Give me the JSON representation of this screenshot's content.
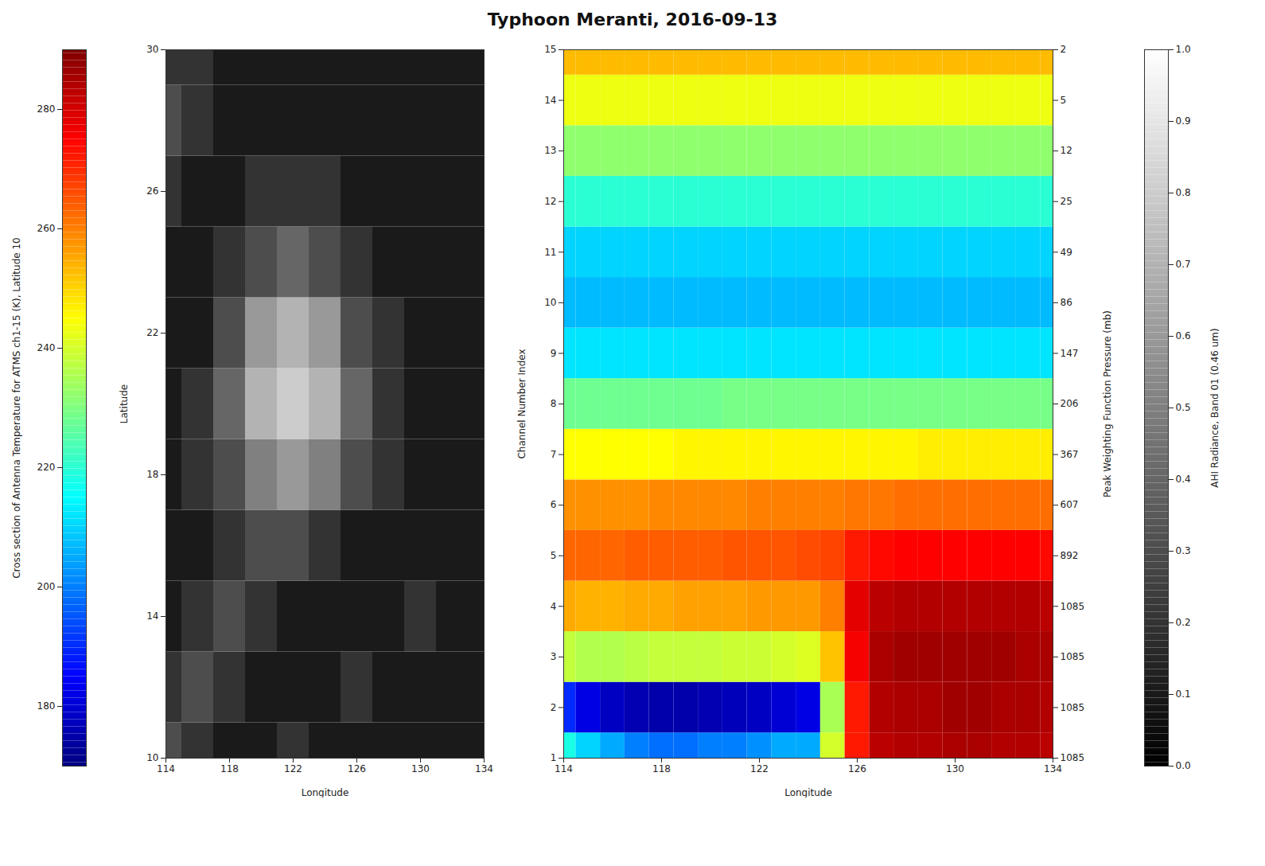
{
  "chart_data": {
    "type": "heatmap",
    "title": "Typhoon Meranti, 2016-09-13",
    "cross_section": {
      "xlabel": "Longitude",
      "ylabel": "Channel Number Index",
      "y2label": "Peak Weighting Function Pressure (mb)",
      "x": [
        114,
        115,
        116,
        117,
        118,
        119,
        120,
        121,
        122,
        123,
        124,
        125,
        126,
        127,
        128,
        129,
        130,
        131,
        132,
        133,
        134
      ],
      "y": [
        1,
        2,
        3,
        4,
        5,
        6,
        7,
        8,
        9,
        10,
        11,
        12,
        13,
        14,
        15
      ],
      "values": [
        [
          218,
          210,
          205,
          200,
          198,
          198,
          200,
          200,
          202,
          205,
          205,
          240,
          272,
          283,
          284,
          284,
          285,
          285,
          284,
          284,
          283
        ],
        [
          190,
          182,
          178,
          176,
          175,
          175,
          176,
          177,
          178,
          180,
          182,
          235,
          272,
          284,
          285,
          285,
          286,
          286,
          285,
          285,
          284
        ],
        [
          238,
          236,
          236,
          237,
          238,
          238,
          238,
          239,
          239,
          240,
          241,
          252,
          276,
          285,
          286,
          286,
          286,
          286,
          286,
          285,
          285
        ],
        [
          255,
          254,
          254,
          255,
          255,
          256,
          256,
          256,
          257,
          257,
          257,
          260,
          278,
          283,
          284,
          284,
          284,
          284,
          284,
          284,
          283
        ],
        [
          263,
          263,
          263,
          264,
          264,
          264,
          264,
          265,
          265,
          265,
          266,
          267,
          272,
          274,
          275,
          275,
          275,
          275,
          275,
          275,
          274
        ],
        [
          258,
          258,
          258,
          258,
          259,
          259,
          259,
          259,
          260,
          260,
          260,
          260,
          261,
          261,
          262,
          262,
          262,
          262,
          262,
          262,
          262
        ],
        [
          245,
          245,
          245,
          245,
          245,
          246,
          246,
          246,
          246,
          246,
          246,
          246,
          246,
          246,
          246,
          247,
          247,
          247,
          247,
          247,
          247
        ],
        [
          228,
          228,
          228,
          228,
          228,
          228,
          228,
          229,
          229,
          229,
          229,
          229,
          229,
          229,
          229,
          229,
          229,
          229,
          229,
          229,
          229
        ],
        [
          212,
          212,
          212,
          212,
          212,
          212,
          212,
          212,
          212,
          212,
          212,
          212,
          212,
          212,
          212,
          212,
          212,
          212,
          212,
          212,
          212
        ],
        [
          207,
          207,
          207,
          207,
          207,
          207,
          207,
          207,
          207,
          207,
          207,
          207,
          207,
          207,
          207,
          207,
          207,
          207,
          207,
          207,
          207
        ],
        [
          210,
          210,
          210,
          210,
          210,
          210,
          210,
          210,
          210,
          210,
          210,
          210,
          210,
          210,
          210,
          210,
          210,
          210,
          210,
          210,
          210
        ],
        [
          220,
          220,
          220,
          220,
          220,
          220,
          220,
          220,
          220,
          220,
          220,
          220,
          220,
          220,
          220,
          220,
          220,
          220,
          220,
          220,
          220
        ],
        [
          232,
          232,
          232,
          232,
          232,
          232,
          232,
          232,
          232,
          232,
          232,
          232,
          232,
          232,
          232,
          232,
          232,
          232,
          232,
          232,
          232
        ],
        [
          243,
          243,
          243,
          243,
          243,
          243,
          243,
          243,
          243,
          243,
          243,
          243,
          243,
          243,
          243,
          243,
          243,
          243,
          243,
          243,
          243
        ],
        [
          253,
          253,
          253,
          253,
          253,
          253,
          253,
          253,
          253,
          253,
          253,
          253,
          253,
          253,
          253,
          253,
          253,
          253,
          253,
          253,
          253
        ]
      ],
      "xlim": [
        114,
        134
      ],
      "xticks": [
        114,
        118,
        122,
        126,
        130,
        134
      ],
      "ylim": [
        1,
        15
      ],
      "yticks": [
        1,
        2,
        3,
        4,
        5,
        6,
        7,
        8,
        9,
        10,
        11,
        12,
        13,
        14,
        15
      ],
      "y2ticks": [
        {
          "value": 1,
          "label": "1085"
        },
        {
          "value": 2,
          "label": "1085"
        },
        {
          "value": 3,
          "label": "1085"
        },
        {
          "value": 4,
          "label": "1085"
        },
        {
          "value": 5,
          "label": "892"
        },
        {
          "value": 6,
          "label": "607"
        },
        {
          "value": 7,
          "label": "367"
        },
        {
          "value": 8,
          "label": "206"
        },
        {
          "value": 9,
          "label": "147"
        },
        {
          "value": 10,
          "label": "86"
        },
        {
          "value": 11,
          "label": "49"
        },
        {
          "value": 12,
          "label": "25"
        },
        {
          "value": 13,
          "label": "12"
        },
        {
          "value": 14,
          "label": "5"
        },
        {
          "value": 15,
          "label": "2"
        }
      ]
    },
    "colorbar": {
      "label": "Cross section of Antenna Temperature for ATMS ch1-15 (K), Latitude 10",
      "clim": [
        170,
        290
      ],
      "cticks": [
        180,
        200,
        220,
        240,
        260,
        280
      ]
    },
    "image": {
      "xlabel": "Longitude",
      "ylabel": "Latitude",
      "x": [
        114,
        116,
        118,
        120,
        122,
        124,
        126,
        128,
        130,
        132,
        134
      ],
      "y": [
        10,
        12,
        14,
        16,
        18,
        20,
        22,
        24,
        26,
        28,
        30
      ],
      "values": [
        [
          0.3,
          0.2,
          0.1,
          0.1,
          0.2,
          0.1,
          0.1,
          0.1,
          0.1,
          0.1,
          0.1
        ],
        [
          0.2,
          0.3,
          0.2,
          0.1,
          0.1,
          0.1,
          0.2,
          0.1,
          0.1,
          0.1,
          0.1
        ],
        [
          0.1,
          0.2,
          0.3,
          0.2,
          0.1,
          0.1,
          0.1,
          0.1,
          0.2,
          0.1,
          0.1
        ],
        [
          0.1,
          0.1,
          0.2,
          0.3,
          0.3,
          0.2,
          0.1,
          0.1,
          0.1,
          0.1,
          0.1
        ],
        [
          0.1,
          0.2,
          0.3,
          0.5,
          0.6,
          0.5,
          0.3,
          0.2,
          0.1,
          0.1,
          0.1
        ],
        [
          0.1,
          0.2,
          0.4,
          0.7,
          0.8,
          0.7,
          0.4,
          0.2,
          0.1,
          0.1,
          0.1
        ],
        [
          0.1,
          0.1,
          0.3,
          0.6,
          0.7,
          0.6,
          0.3,
          0.2,
          0.1,
          0.1,
          0.1
        ],
        [
          0.1,
          0.1,
          0.2,
          0.3,
          0.4,
          0.3,
          0.2,
          0.1,
          0.1,
          0.1,
          0.1
        ],
        [
          0.2,
          0.1,
          0.1,
          0.2,
          0.2,
          0.2,
          0.1,
          0.1,
          0.1,
          0.1,
          0.1
        ],
        [
          0.3,
          0.2,
          0.1,
          0.1,
          0.1,
          0.1,
          0.1,
          0.1,
          0.1,
          0.1,
          0.1
        ],
        [
          0.2,
          0.2,
          0.1,
          0.1,
          0.1,
          0.1,
          0.1,
          0.1,
          0.1,
          0.1,
          0.1
        ]
      ],
      "xlim": [
        114,
        134
      ],
      "xticks": [
        114,
        118,
        122,
        126,
        130,
        134
      ],
      "ylim": [
        10,
        30
      ],
      "yticks": [
        10,
        14,
        18,
        22,
        26,
        30
      ]
    },
    "image_colorbar": {
      "label": "AHI Radiance, Band 01 (0.46 um)",
      "clim": [
        0,
        1
      ],
      "cticks": [
        0,
        0.1,
        0.2,
        0.3,
        0.4,
        0.5,
        0.6,
        0.7,
        0.8,
        0.9,
        1
      ]
    }
  }
}
